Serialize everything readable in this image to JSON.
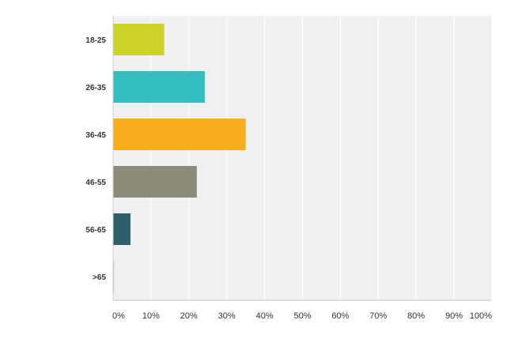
{
  "chart_data": {
    "type": "bar",
    "orientation": "horizontal",
    "categories": [
      "18-25",
      "26-35",
      "36-45",
      "46-55",
      "56-65",
      ">65"
    ],
    "values": [
      13.5,
      24.2,
      35.0,
      22.1,
      4.6,
      0.3
    ],
    "unit": "%",
    "xlim": [
      0,
      100
    ],
    "x_ticks": [
      "0%",
      "10%",
      "20%",
      "30%",
      "40%",
      "50%",
      "60%",
      "70%",
      "80%",
      "90%",
      "100%"
    ],
    "title": "",
    "xlabel": "",
    "ylabel": "",
    "grid": true,
    "legend": "none",
    "colors": [
      "#cdd22a",
      "#33bfbf",
      "#f8ad1f",
      "#8a8b79",
      "#2e5f6b",
      "#cccccc"
    ],
    "plot_background": "#f0f0f0"
  }
}
